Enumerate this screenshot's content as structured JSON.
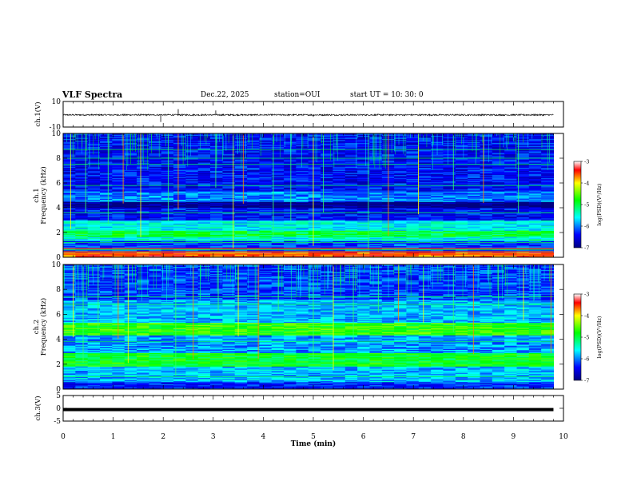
{
  "header": {
    "title": "VLF Spectra",
    "date": "Dec.22, 2025",
    "station": "station=OUI",
    "start": "start  UT  =   10: 30: 0"
  },
  "chart_data": [
    {
      "type": "line",
      "panel": "ch1-waveform",
      "ylabel": "ch.1(V)",
      "ylim": [
        -10,
        10
      ],
      "yticks": [
        "10",
        "-10"
      ],
      "baseline": -0.5,
      "noise_amplitude": 0.6,
      "spikes": [
        {
          "t": 1.95,
          "v": -6
        },
        {
          "t": 2.3,
          "v": 4
        },
        {
          "t": 3.05,
          "v": 3
        },
        {
          "t": 5.0,
          "v": -2
        }
      ]
    },
    {
      "type": "heatmap",
      "panel": "ch1-spectrogram",
      "ylabel": "ch.1\nFrequency (kHz)",
      "xlim": [
        0,
        10
      ],
      "data_end_min": 9.8,
      "ylim": [
        0,
        10
      ],
      "yticks": [
        "0",
        "2",
        "4",
        "6",
        "8",
        "10"
      ],
      "colorbar": {
        "label": "log(PSD)(V²/Hz)",
        "range": [
          -7,
          -3
        ],
        "ticks": [
          "-3",
          "-4",
          "-5",
          "-6",
          "-7"
        ]
      },
      "bands": [
        {
          "f": [
            0,
            0.4
          ],
          "level": -3.6
        },
        {
          "f": [
            0.4,
            1.3
          ],
          "level": -6.2
        },
        {
          "f": [
            1.3,
            1.7
          ],
          "level": -5.5
        },
        {
          "f": [
            1.7,
            2.2
          ],
          "level": -5.0
        },
        {
          "f": [
            2.2,
            3.0
          ],
          "level": -5.6
        },
        {
          "f": [
            3.0,
            4.0
          ],
          "level": -6.4
        },
        {
          "f": [
            4.0,
            4.5
          ],
          "level": -7.0
        },
        {
          "f": [
            4.5,
            5.3
          ],
          "level": -6.0
        },
        {
          "f": [
            5.3,
            10
          ],
          "level": -6.4
        }
      ],
      "lines_khz": [
        0.6,
        1.2,
        3.6,
        5.8,
        7.5,
        8.0,
        8.7
      ],
      "spikes_min": [
        0.15,
        0.45,
        0.9,
        1.2,
        1.55,
        2.1,
        2.3,
        3.05,
        3.4,
        3.6,
        4.2,
        4.55,
        5.0,
        5.2,
        6.1,
        6.5,
        7.1,
        7.8,
        8.4,
        9.1
      ]
    },
    {
      "type": "heatmap",
      "panel": "ch2-spectrogram",
      "ylabel": "ch.2\nFrequency (kHz)",
      "xlim": [
        0,
        10
      ],
      "data_end_min": 9.8,
      "ylim": [
        0,
        10
      ],
      "yticks": [
        "0",
        "2",
        "4",
        "6",
        "8",
        "10"
      ],
      "colorbar": {
        "label": "log(PSD)(V²/Hz)",
        "range": [
          -7,
          -3
        ],
        "ticks": [
          "-3",
          "-4",
          "-5",
          "-6",
          "-7"
        ]
      },
      "bands": [
        {
          "f": [
            0,
            0.6
          ],
          "level": -6.3
        },
        {
          "f": [
            0.6,
            1.8
          ],
          "level": -5.8
        },
        {
          "f": [
            1.8,
            2.9
          ],
          "level": -4.9
        },
        {
          "f": [
            2.9,
            4.3
          ],
          "level": -5.9
        },
        {
          "f": [
            4.3,
            5.3
          ],
          "level": -4.7
        },
        {
          "f": [
            5.3,
            7.2
          ],
          "level": -5.8
        },
        {
          "f": [
            7.2,
            10
          ],
          "level": -6.2
        }
      ],
      "lines_khz": [
        1.0,
        3.8,
        6.8,
        7.4
      ],
      "spikes_min": [
        0.2,
        0.4,
        0.7,
        1.1,
        1.3,
        2.25,
        2.6,
        3.1,
        3.5,
        3.9,
        4.3,
        5.0,
        5.4,
        5.8,
        6.3,
        6.7,
        7.2,
        7.8,
        8.2,
        8.7,
        9.2,
        9.75
      ]
    },
    {
      "type": "line",
      "panel": "ch3-waveform",
      "ylabel": "ch.3(V)",
      "ylim": [
        -5,
        5
      ],
      "yticks": [
        "5",
        "0",
        "-5"
      ],
      "baseline": -0.5,
      "noise_amplitude": 0.15
    }
  ],
  "x_axis": {
    "label": "Time (min)",
    "ticks": [
      "0",
      "1",
      "2",
      "3",
      "4",
      "5",
      "6",
      "7",
      "8",
      "9",
      "10"
    ]
  }
}
